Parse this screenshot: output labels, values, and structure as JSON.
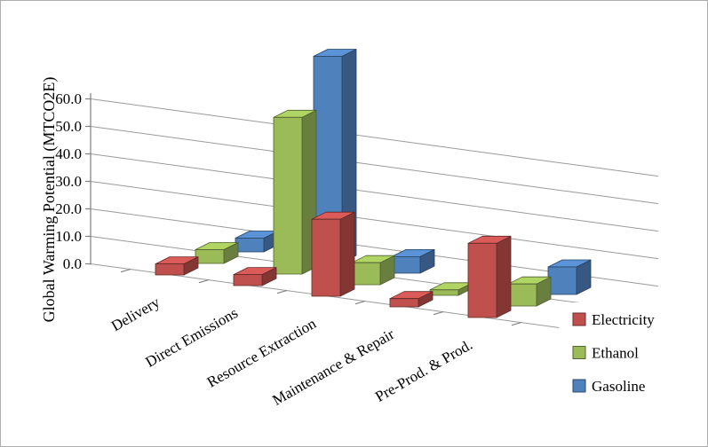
{
  "chart_data": {
    "type": "bar",
    "subtype": "3d-column",
    "title": "",
    "ylabel": "Global Warming Potential (MTCO2E)",
    "xlabel": "",
    "categories": [
      "Delivery",
      "Direct Emissions",
      "Resource Extraction",
      "Maintenance & Repair",
      "Pre-Prod. & Prod."
    ],
    "series": [
      {
        "name": "Electricity",
        "color": "#C0504D",
        "values": [
          4,
          4,
          28,
          3,
          27
        ]
      },
      {
        "name": "Ethanol",
        "color": "#9BBB59",
        "values": [
          5,
          57,
          8,
          2,
          8
        ]
      },
      {
        "name": "Gasoline",
        "color": "#4F81BD",
        "values": [
          5,
          75,
          6,
          0,
          10
        ]
      }
    ],
    "y_ticks": [
      "0.0",
      "10.0",
      "20.0",
      "30.0",
      "40.0",
      "50.0",
      "60.0"
    ],
    "ylim": [
      0,
      60
    ],
    "tick_step": 10,
    "grid": true,
    "legend_position": "bottom-right",
    "colors": {
      "gridline": "#9a9a9a",
      "axis": "#7f7f7f",
      "text": "#000000",
      "background": "#ffffff"
    }
  }
}
